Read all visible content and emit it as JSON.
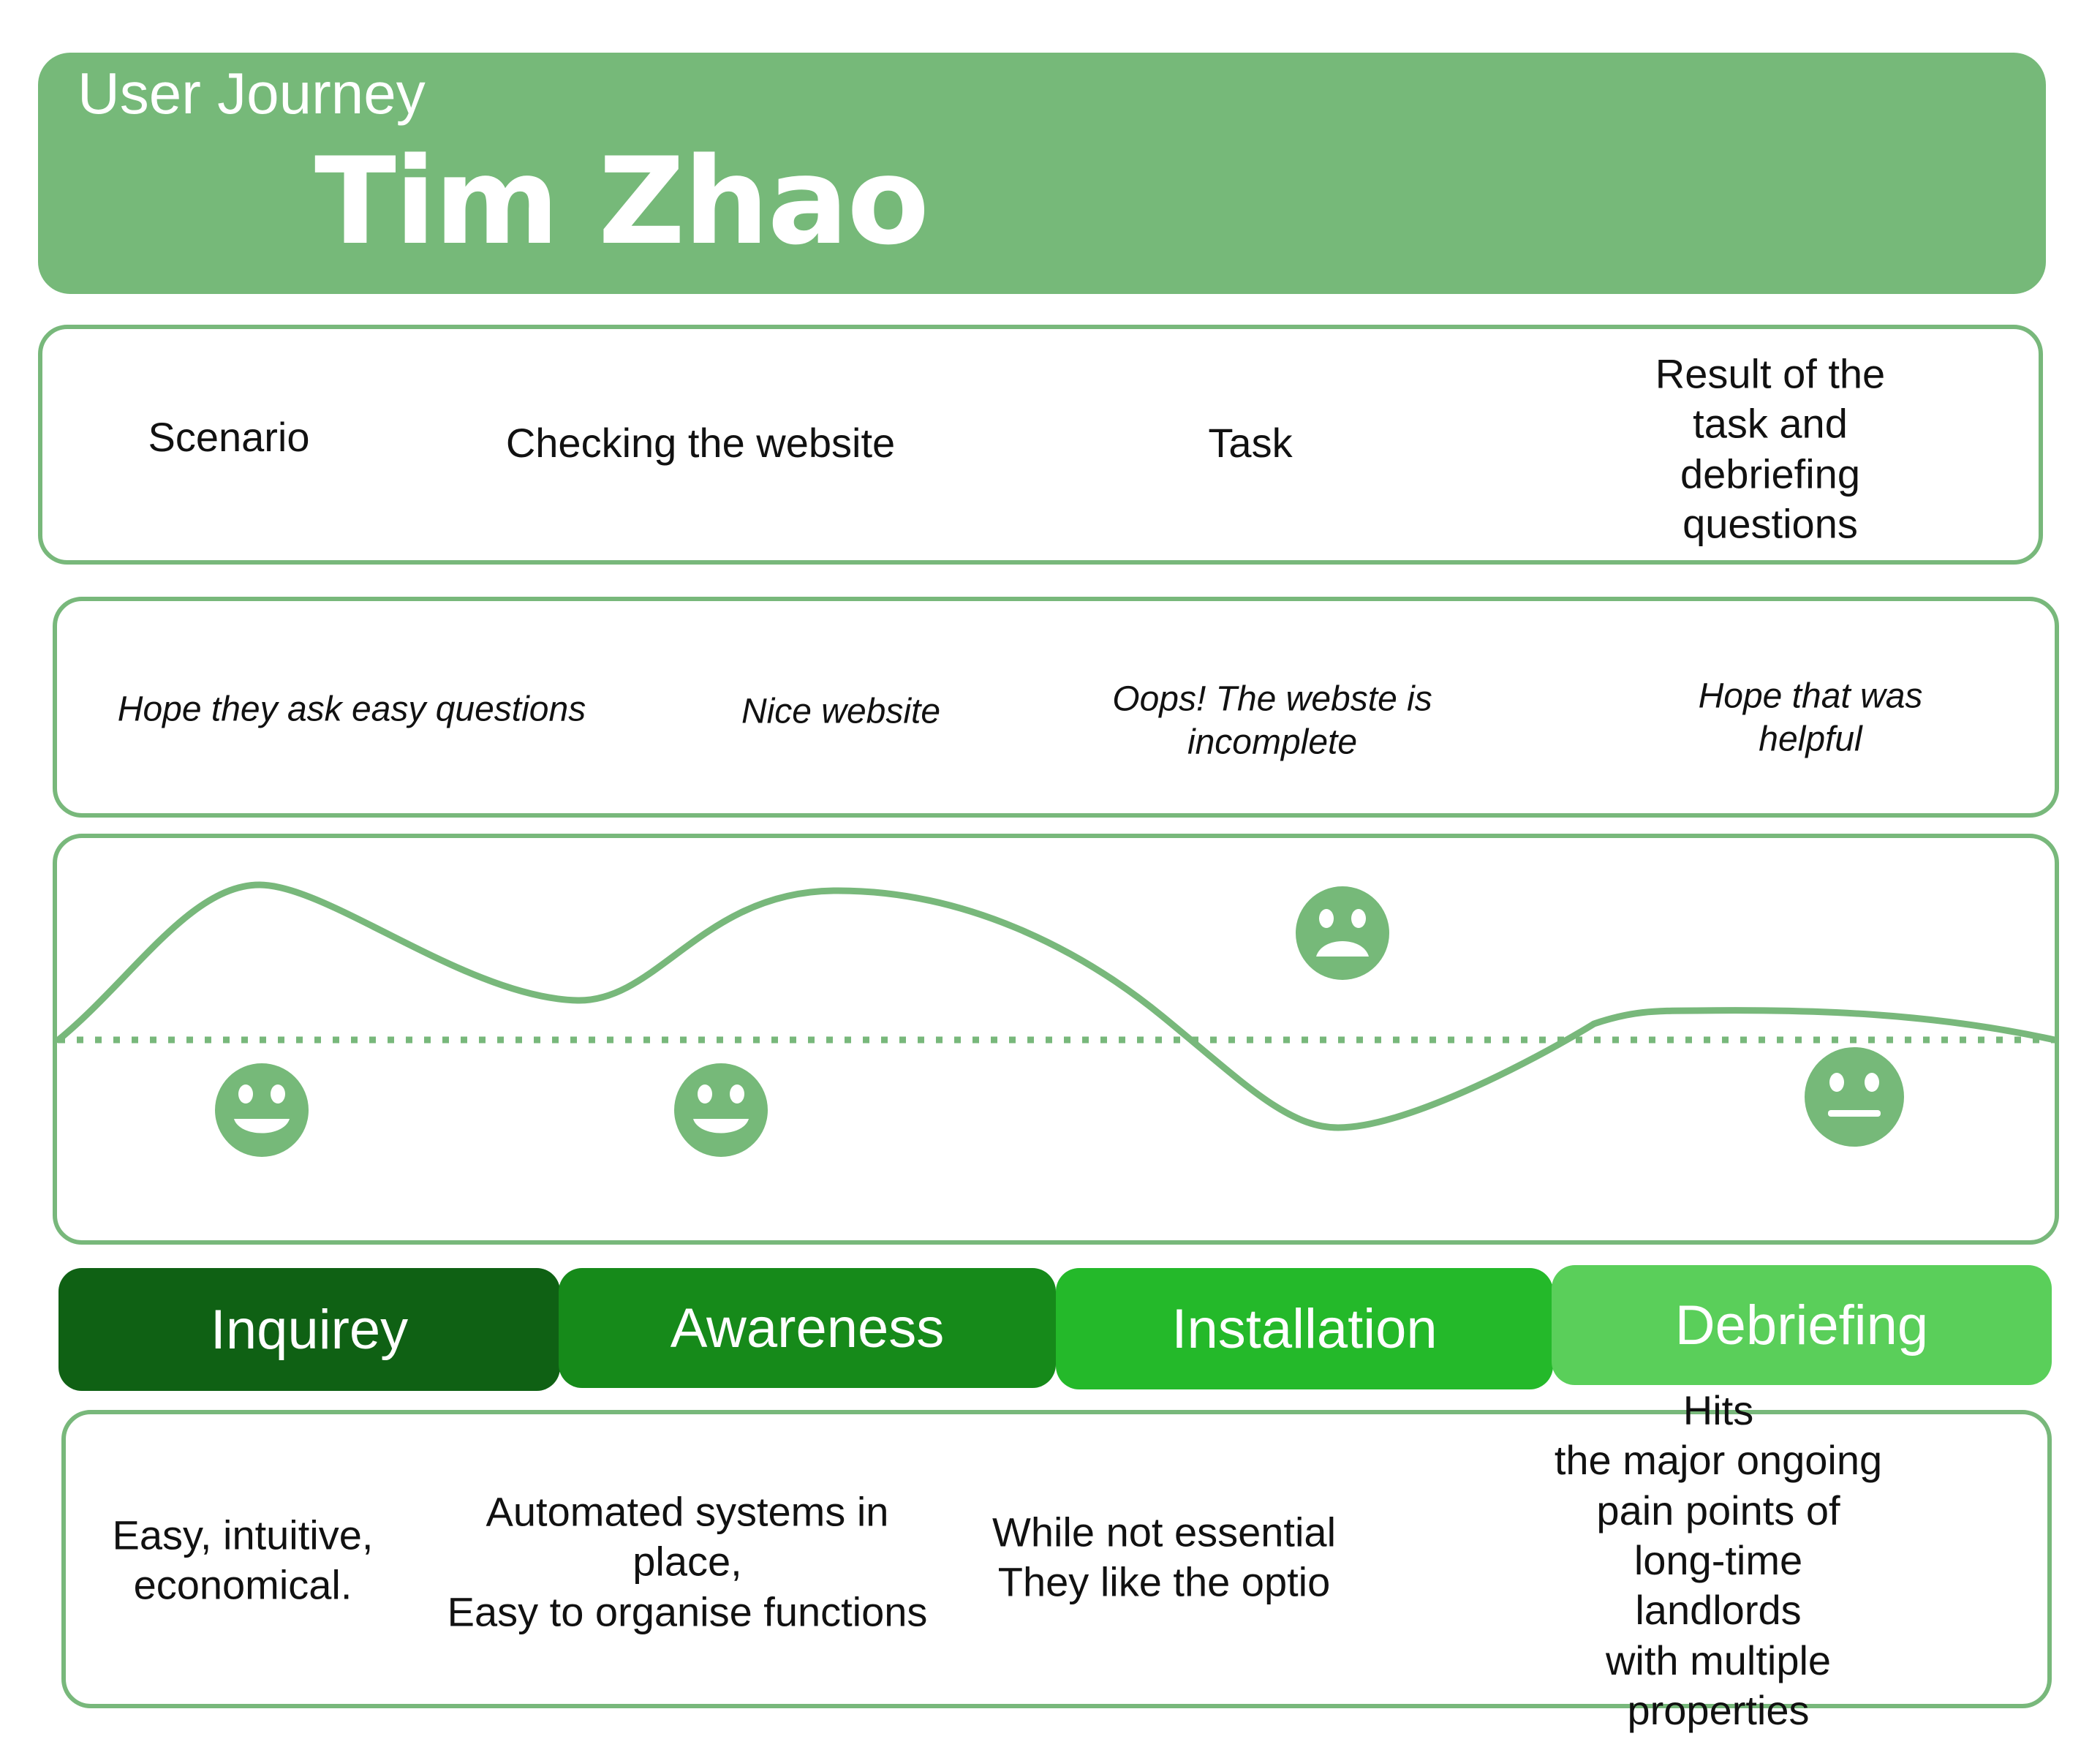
{
  "header": {
    "subtitle": "User Journey",
    "name": "Tim Zhao"
  },
  "steps_row": [
    "Scenario",
    "Checking the website",
    "Task",
    "Result of the task and\ndebriefing questions"
  ],
  "thoughts_row": [
    "Hope they ask easy questions",
    "Nice website",
    "Oops! The webste is\nincomplete",
    "Hope that was helpful"
  ],
  "emotion_graph": {
    "faces": [
      "happy",
      "happy",
      "sad",
      "neutral"
    ],
    "colors": {
      "line": "#78b87b",
      "face": "#76b979"
    }
  },
  "stages": [
    {
      "label": "Inquirey",
      "color": "#0f6114"
    },
    {
      "label": "Awareness",
      "color": "#168a1a"
    },
    {
      "label": "Installation",
      "color": "#24b92a"
    },
    {
      "label": "Debriefing",
      "color": "#5acf5a"
    }
  ],
  "notes_row": [
    "Easy, intuitive,\neconomical.",
    "Automated systems in\nplace,\nEasy to organise functions",
    "While not essential\nThey like the optio",
    "Hits\nthe major ongoing\npain points of long-time landlords\nwith multiple properties"
  ]
}
